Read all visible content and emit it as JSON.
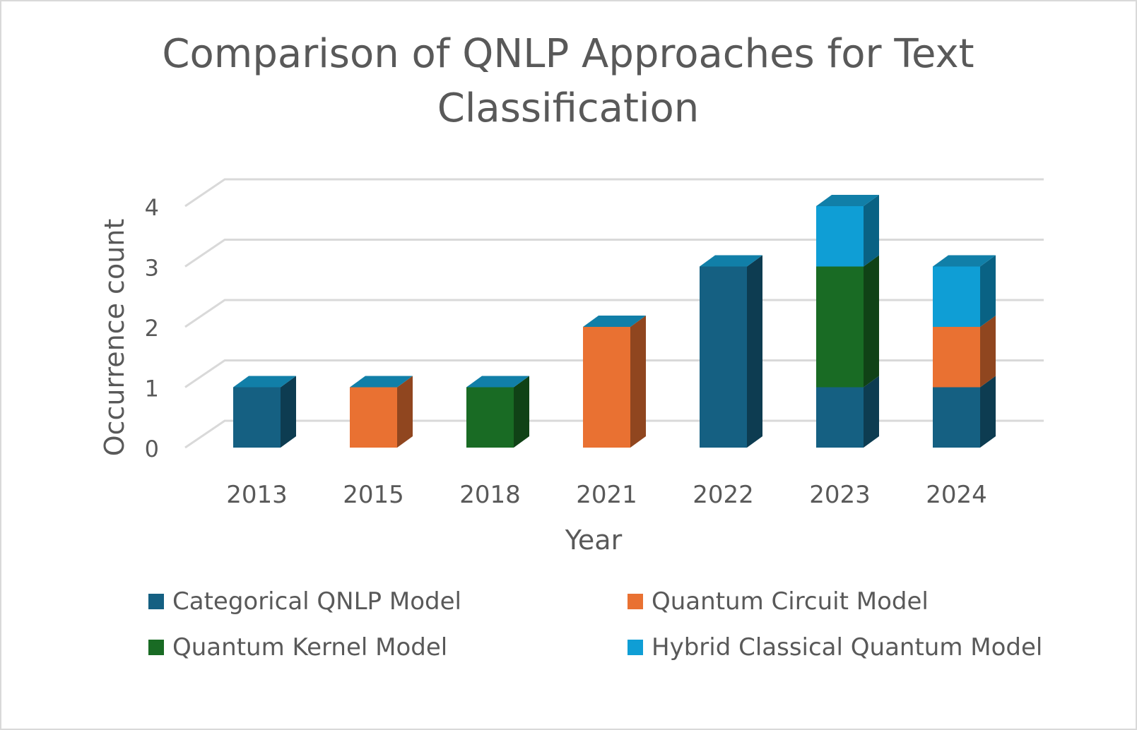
{
  "chart_data": {
    "type": "bar",
    "stacked": true,
    "three_d": true,
    "title": "Comparison of QNLP Approaches for Text Classification",
    "title_lines": [
      "Comparison of QNLP Approaches for Text",
      "Classification"
    ],
    "xlabel": "Year",
    "ylabel": "Occurrence count",
    "ylim": [
      0,
      4
    ],
    "yticks": [
      0,
      1,
      2,
      3,
      4
    ],
    "categories": [
      "2013",
      "2015",
      "2018",
      "2021",
      "2022",
      "2023",
      "2024"
    ],
    "series": [
      {
        "name": "Categorical QNLP Model",
        "color": "#156082",
        "values": [
          1,
          0,
          0,
          0,
          3,
          1,
          1
        ]
      },
      {
        "name": "Quantum Circuit Model",
        "color": "#E97132",
        "values": [
          0,
          1,
          0,
          2,
          0,
          0,
          1
        ]
      },
      {
        "name": "Quantum Kernel Model",
        "color": "#196B24",
        "values": [
          0,
          0,
          1,
          0,
          0,
          2,
          0
        ]
      },
      {
        "name": "Hybrid Classical Quantum Model",
        "color": "#0F9ED5",
        "values": [
          0,
          0,
          0,
          0,
          0,
          1,
          1
        ]
      }
    ],
    "grid": true,
    "legend_position": "bottom"
  }
}
